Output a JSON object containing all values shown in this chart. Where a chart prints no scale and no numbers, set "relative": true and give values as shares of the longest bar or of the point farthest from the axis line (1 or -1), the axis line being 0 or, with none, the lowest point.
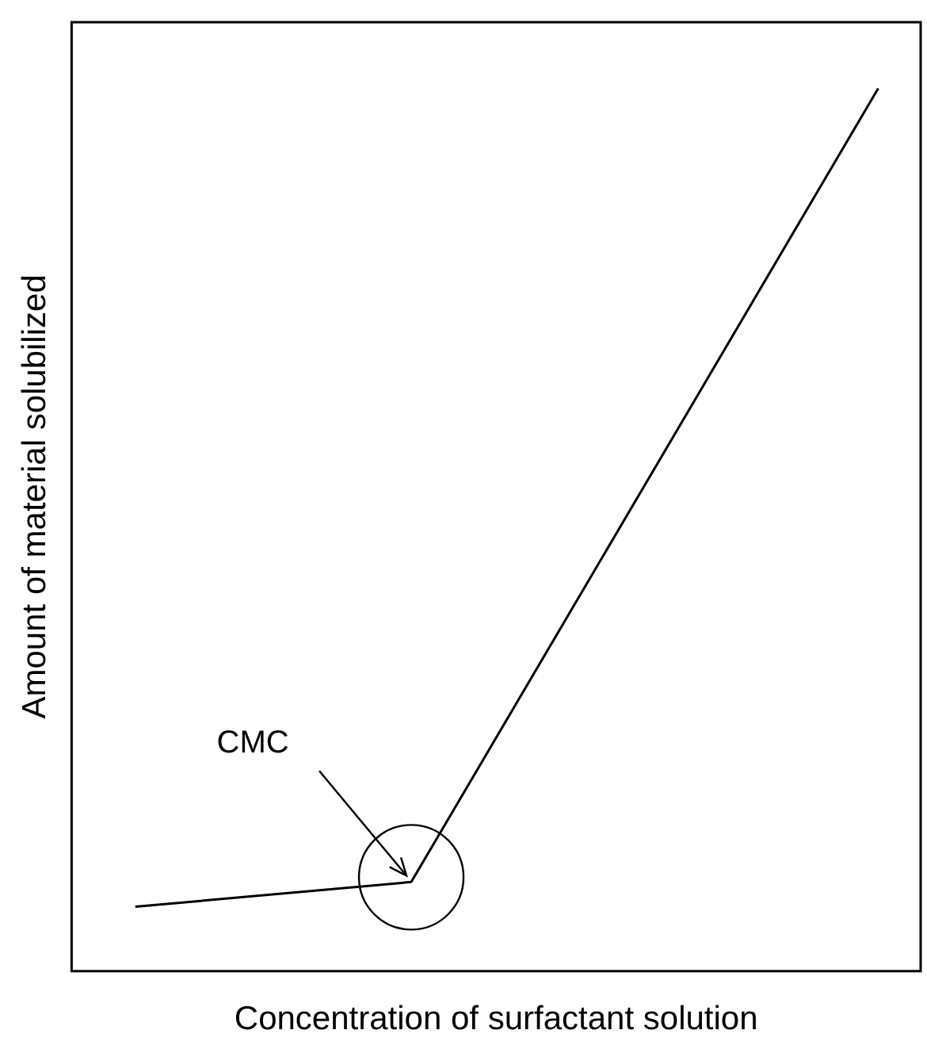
{
  "chart_data": {
    "type": "line",
    "relative": true,
    "xlabel": "Concentration of surfactant solution",
    "ylabel": "Amount of material solubilized",
    "categories": [
      null,
      null,
      null,
      null,
      null,
      null,
      null,
      null,
      null,
      null,
      null,
      null,
      null,
      null,
      null,
      null,
      null,
      null,
      null,
      null,
      null,
      null,
      null,
      null,
      null,
      null,
      null,
      null,
      null,
      null,
      null,
      null,
      null,
      null,
      null,
      null,
      null,
      null,
      null,
      null,
      null
    ],
    "grid": false,
    "legend": false,
    "marker": "none",
    "series": [
      {
        "color": "#000000",
        "values": [
          null,
          null,
          null,
          0.073,
          null,
          null,
          null,
          null,
          null,
          null,
          null,
          null,
          null,
          null,
          null,
          null,
          0.101,
          null,
          null,
          null,
          null,
          null,
          null,
          null,
          null,
          null,
          null,
          null,
          null,
          null,
          null,
          null,
          null,
          null,
          null,
          null,
          null,
          null,
          1,
          null,
          null
        ]
      }
    ],
    "annotations": [
      "CMC"
    ]
  }
}
